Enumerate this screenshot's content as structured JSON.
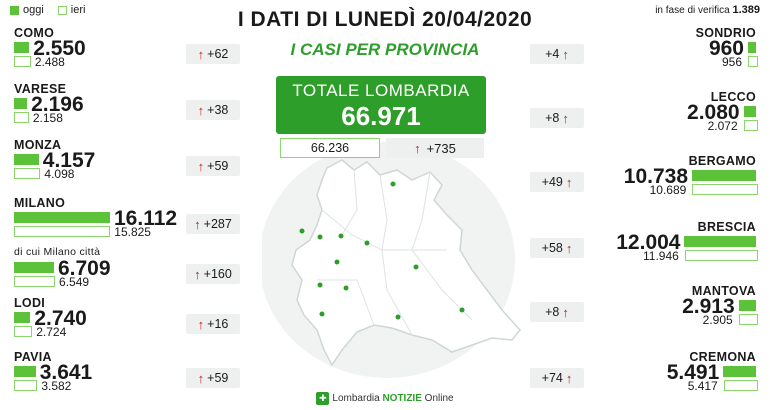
{
  "header": {
    "legend_oggi": "oggi",
    "legend_ieri": "ieri",
    "title": "I DATI DI LUNEDÌ 20/04/2020",
    "subtitle": "I CASI PER PROVINCIA",
    "verifica_label": "in fase di verifica",
    "verifica_value": "1.389"
  },
  "totale": {
    "label": "TOTALE LOMBARDIA",
    "oggi": "66.971",
    "ieri": "66.236",
    "delta": "+735"
  },
  "footer": {
    "brand_a": "Lombardia ",
    "brand_b": "NOTIZIE",
    "brand_c": " Online"
  },
  "colors": {
    "oggi": "#5cc23a",
    "ieri_border": "#8ad56c",
    "accent": "#2e9e2a",
    "arrow": "#c8231d"
  },
  "chart_data": {
    "type": "bar",
    "series": [
      {
        "name": "oggi"
      },
      {
        "name": "ieri"
      }
    ],
    "provinces": [
      {
        "name": "COMO",
        "oggi": 2550,
        "ieri": 2488,
        "oggi_label": "2.550",
        "ieri_label": "2.488",
        "delta": "+62"
      },
      {
        "name": "VARESE",
        "oggi": 2196,
        "ieri": 2158,
        "oggi_label": "2.196",
        "ieri_label": "2.158",
        "delta": "+38"
      },
      {
        "name": "MONZA",
        "oggi": 4157,
        "ieri": 4098,
        "oggi_label": "4.157",
        "ieri_label": "4.098",
        "delta": "+59"
      },
      {
        "name": "MILANO",
        "oggi": 16112,
        "ieri": 15825,
        "oggi_label": "16.112",
        "ieri_label": "15.825",
        "delta": "+287"
      },
      {
        "name": "di cui Milano città",
        "oggi": 6709,
        "ieri": 6549,
        "oggi_label": "6.709",
        "ieri_label": "6.549",
        "delta": "+160"
      },
      {
        "name": "LODI",
        "oggi": 2740,
        "ieri": 2724,
        "oggi_label": "2.740",
        "ieri_label": "2.724",
        "delta": "+16"
      },
      {
        "name": "PAVIA",
        "oggi": 3641,
        "ieri": 3582,
        "oggi_label": "3.641",
        "ieri_label": "3.582",
        "delta": "+59"
      },
      {
        "name": "SONDRIO",
        "oggi": 960,
        "ieri": 956,
        "oggi_label": "960",
        "ieri_label": "956",
        "delta": "+4"
      },
      {
        "name": "LECCO",
        "oggi": 2080,
        "ieri": 2072,
        "oggi_label": "2.080",
        "ieri_label": "2.072",
        "delta": "+8"
      },
      {
        "name": "BERGAMO",
        "oggi": 10738,
        "ieri": 10689,
        "oggi_label": "10.738",
        "ieri_label": "10.689",
        "delta": "+49"
      },
      {
        "name": "BRESCIA",
        "oggi": 12004,
        "ieri": 11946,
        "oggi_label": "12.004",
        "ieri_label": "11.946",
        "delta": "+58"
      },
      {
        "name": "MANTOVA",
        "oggi": 2913,
        "ieri": 2905,
        "oggi_label": "2.913",
        "ieri_label": "2.905",
        "delta": "+8"
      },
      {
        "name": "CREMONA",
        "oggi": 5491,
        "ieri": 5417,
        "oggi_label": "5.491",
        "ieri_label": "5.417",
        "delta": "+74"
      }
    ]
  }
}
